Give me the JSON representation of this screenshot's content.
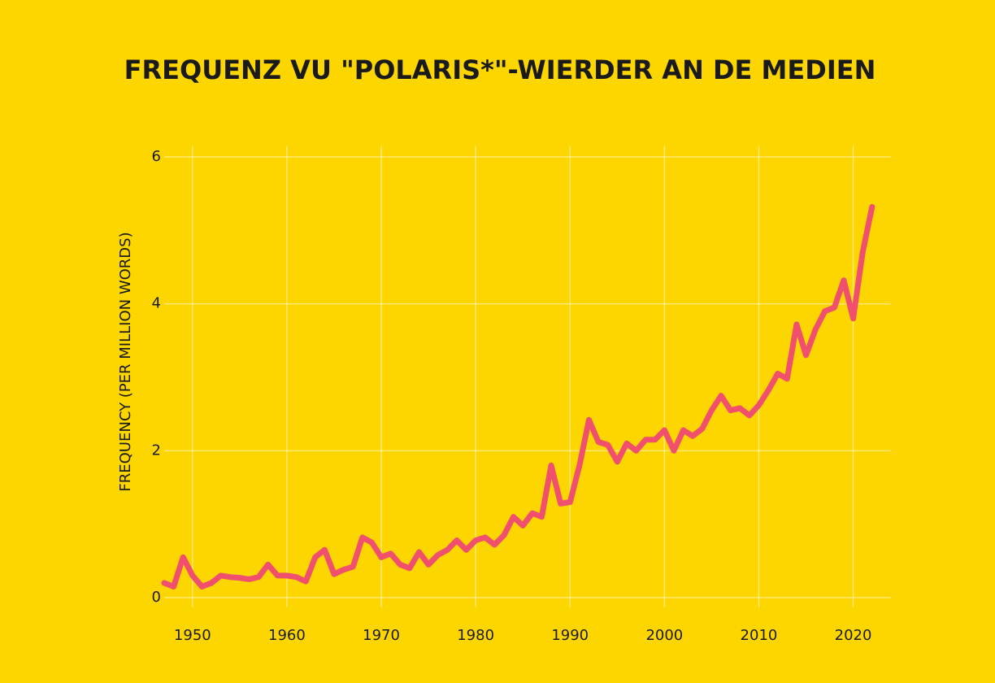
{
  "chart_data": {
    "type": "line",
    "title": "FREQUENZ VU \"POLARIS*\"-WIERDER AN DE MEDIEN",
    "y_label": "FREQUENCY (PER MILLION WORDS)",
    "x": [
      1947,
      1948,
      1949,
      1950,
      1951,
      1952,
      1953,
      1954,
      1955,
      1956,
      1957,
      1958,
      1959,
      1960,
      1961,
      1962,
      1963,
      1964,
      1965,
      1966,
      1967,
      1968,
      1969,
      1970,
      1971,
      1972,
      1973,
      1974,
      1975,
      1976,
      1977,
      1978,
      1979,
      1980,
      1981,
      1982,
      1983,
      1984,
      1985,
      1986,
      1987,
      1988,
      1989,
      1990,
      1991,
      1992,
      1993,
      1994,
      1995,
      1996,
      1997,
      1998,
      1999,
      2000,
      2001,
      2002,
      2003,
      2004,
      2005,
      2006,
      2007,
      2008,
      2009,
      2010,
      2011,
      2012,
      2013,
      2014,
      2015,
      2016,
      2017,
      2018,
      2019,
      2020,
      2021,
      2022
    ],
    "series": [
      {
        "name": "polaris*",
        "color": "#f0506e",
        "values": [
          0.2,
          0.15,
          0.55,
          0.3,
          0.15,
          0.2,
          0.3,
          0.28,
          0.27,
          0.25,
          0.28,
          0.45,
          0.3,
          0.3,
          0.28,
          0.22,
          0.55,
          0.65,
          0.32,
          0.38,
          0.42,
          0.82,
          0.75,
          0.55,
          0.6,
          0.45,
          0.4,
          0.62,
          0.45,
          0.58,
          0.65,
          0.78,
          0.65,
          0.78,
          0.82,
          0.72,
          0.85,
          1.1,
          0.98,
          1.15,
          1.1,
          1.8,
          1.28,
          1.3,
          1.8,
          2.42,
          2.12,
          2.08,
          1.85,
          2.1,
          2.0,
          2.15,
          2.15,
          2.28,
          2.0,
          2.28,
          2.2,
          2.3,
          2.55,
          2.75,
          2.55,
          2.58,
          2.48,
          2.62,
          2.82,
          3.05,
          2.98,
          3.72,
          3.3,
          3.65,
          3.9,
          3.95,
          4.32,
          3.8,
          4.7,
          5.32
        ]
      }
    ],
    "xlim": [
      1947,
      2024
    ],
    "xticks": [
      1950,
      1960,
      1970,
      1980,
      1990,
      2000,
      2010,
      2020
    ],
    "ylim": [
      0,
      6.15
    ],
    "yticks": [
      0,
      2,
      4,
      6
    ],
    "grid": true
  }
}
